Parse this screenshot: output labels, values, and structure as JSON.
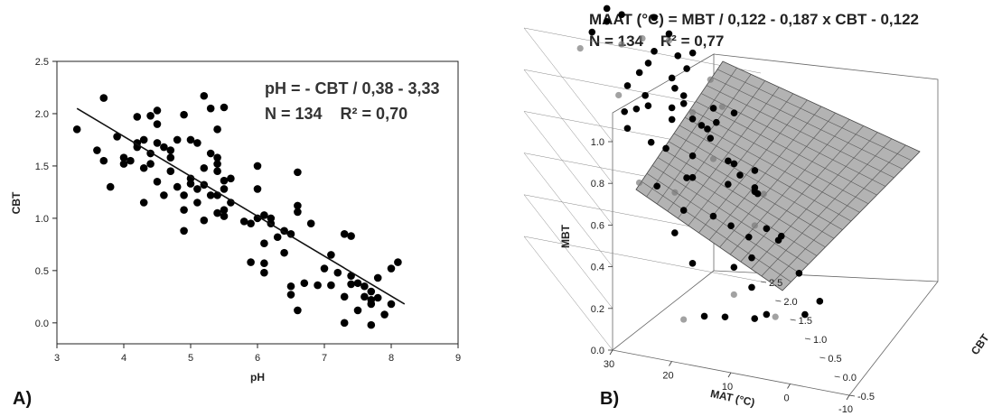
{
  "chart_data": [
    {
      "panel_label": "A)",
      "type": "scatter",
      "xlabel": "pH",
      "ylabel": "CBT",
      "xlim": [
        3,
        9
      ],
      "ylim": [
        -0.2,
        2.5
      ],
      "x_ticks": [
        "3",
        "4",
        "5",
        "6",
        "7",
        "8",
        "9"
      ],
      "y_ticks": [
        "0.0",
        "0.5",
        "1.0",
        "1.5",
        "2.0",
        "2.5"
      ],
      "annotation_line1": "pH = - CBT / 0,38 - 3,33",
      "annotation_line2": "N = 134    R² = 0,70",
      "fit_line": {
        "x": [
          3.3,
          8.2
        ],
        "y": [
          2.05,
          0.18
        ]
      },
      "points": [
        [
          3.3,
          1.85
        ],
        [
          3.6,
          1.65
        ],
        [
          3.7,
          2.15
        ],
        [
          3.7,
          1.55
        ],
        [
          3.8,
          1.3
        ],
        [
          3.9,
          1.78
        ],
        [
          4.0,
          1.58
        ],
        [
          4.0,
          1.52
        ],
        [
          4.1,
          1.55
        ],
        [
          4.2,
          1.97
        ],
        [
          4.2,
          1.72
        ],
        [
          4.2,
          1.68
        ],
        [
          4.3,
          1.48
        ],
        [
          4.3,
          1.15
        ],
        [
          4.3,
          1.75
        ],
        [
          4.4,
          1.98
        ],
        [
          4.4,
          1.62
        ],
        [
          4.4,
          1.52
        ],
        [
          4.5,
          1.35
        ],
        [
          4.5,
          1.9
        ],
        [
          4.5,
          2.03
        ],
        [
          4.5,
          1.72
        ],
        [
          4.6,
          1.68
        ],
        [
          4.6,
          1.22
        ],
        [
          4.7,
          1.58
        ],
        [
          4.7,
          1.45
        ],
        [
          4.7,
          1.65
        ],
        [
          4.8,
          1.75
        ],
        [
          4.8,
          1.3
        ],
        [
          4.9,
          1.99
        ],
        [
          4.9,
          1.22
        ],
        [
          4.9,
          1.08
        ],
        [
          4.9,
          0.88
        ],
        [
          5.0,
          1.75
        ],
        [
          5.0,
          1.38
        ],
        [
          5.0,
          1.33
        ],
        [
          5.1,
          1.28
        ],
        [
          5.1,
          1.15
        ],
        [
          5.1,
          1.72
        ],
        [
          5.2,
          1.48
        ],
        [
          5.2,
          1.32
        ],
        [
          5.2,
          0.98
        ],
        [
          5.2,
          2.17
        ],
        [
          5.3,
          2.05
        ],
        [
          5.3,
          1.62
        ],
        [
          5.3,
          1.22
        ],
        [
          5.4,
          1.85
        ],
        [
          5.4,
          1.52
        ],
        [
          5.4,
          1.45
        ],
        [
          5.4,
          1.22
        ],
        [
          5.4,
          1.58
        ],
        [
          5.5,
          1.36
        ],
        [
          5.5,
          1.28
        ],
        [
          5.5,
          1.08
        ],
        [
          5.5,
          1.02
        ],
        [
          5.6,
          1.15
        ],
        [
          5.6,
          1.38
        ],
        [
          5.4,
          1.05
        ],
        [
          5.5,
          2.06
        ],
        [
          5.8,
          0.97
        ],
        [
          5.9,
          0.58
        ],
        [
          5.9,
          0.95
        ],
        [
          6.0,
          1.5
        ],
        [
          6.0,
          1.28
        ],
        [
          6.0,
          1.0
        ],
        [
          6.1,
          1.03
        ],
        [
          6.1,
          0.76
        ],
        [
          6.1,
          0.57
        ],
        [
          6.1,
          0.48
        ],
        [
          6.2,
          1.0
        ],
        [
          6.2,
          0.95
        ],
        [
          6.3,
          0.82
        ],
        [
          6.4,
          0.88
        ],
        [
          6.4,
          0.67
        ],
        [
          6.5,
          0.85
        ],
        [
          6.5,
          0.35
        ],
        [
          6.5,
          0.27
        ],
        [
          6.6,
          1.44
        ],
        [
          6.6,
          1.12
        ],
        [
          6.6,
          1.06
        ],
        [
          6.6,
          0.12
        ],
        [
          6.7,
          0.38
        ],
        [
          6.8,
          0.95
        ],
        [
          6.9,
          0.36
        ],
        [
          7.0,
          0.52
        ],
        [
          7.1,
          0.65
        ],
        [
          7.1,
          0.36
        ],
        [
          7.2,
          0.48
        ],
        [
          7.3,
          0.85
        ],
        [
          7.3,
          0.25
        ],
        [
          7.3,
          0.0
        ],
        [
          7.4,
          0.83
        ],
        [
          7.4,
          0.45
        ],
        [
          7.4,
          0.37
        ],
        [
          7.5,
          0.38
        ],
        [
          7.5,
          0.12
        ],
        [
          7.6,
          0.35
        ],
        [
          7.6,
          0.25
        ],
        [
          7.7,
          0.3
        ],
        [
          7.7,
          0.22
        ],
        [
          7.7,
          0.18
        ],
        [
          7.7,
          -0.02
        ],
        [
          7.8,
          0.43
        ],
        [
          7.8,
          0.24
        ],
        [
          7.9,
          0.08
        ],
        [
          8.0,
          0.52
        ],
        [
          8.0,
          0.18
        ],
        [
          8.1,
          0.58
        ]
      ]
    },
    {
      "panel_label": "B)",
      "type": "scatter",
      "title_line1": "MAAT (°C) = MBT / 0,122 - 0,187 x CBT - 0,122",
      "title_line2": "N = 134    R² = 0,77",
      "xlabel": "MAT (°C)",
      "ylabel": "MBT",
      "zlabel": "CBT",
      "xlim": [
        -10,
        30
      ],
      "ylim": [
        -0.5,
        2.5
      ],
      "zlim": [
        0.0,
        1.0
      ],
      "x_ticks": [
        "30",
        "20",
        "10",
        "0",
        "-10"
      ],
      "y_ticks": [
        "-0.5",
        "0.0",
        "0.5",
        "1.0",
        "1.5",
        "2.0",
        "2.5"
      ],
      "z_ticks": [
        "0.0",
        "0.2",
        "0.4",
        "0.6",
        "0.8",
        "1.0"
      ],
      "plane_color": "#b3b3b3",
      "points": [
        [
          23,
          0.5,
          1.0
        ],
        [
          25,
          0.0,
          1.0
        ],
        [
          23,
          0.0,
          0.75
        ],
        [
          20,
          0.0,
          0.75
        ],
        [
          19,
          0.5,
          1.05
        ],
        [
          20,
          1.0,
          1.05
        ],
        [
          18,
          0.8,
          1.05
        ],
        [
          20,
          1.3,
          0.95
        ],
        [
          16,
          1.0,
          0.8
        ],
        [
          17,
          1.3,
          0.9
        ],
        [
          12,
          0.7,
          1.1
        ],
        [
          14,
          1.5,
          1.1
        ],
        [
          18,
          1.6,
          1.15
        ],
        [
          13,
          0.9,
          1.0
        ],
        [
          10,
          1.1,
          1.0
        ],
        [
          9,
          1.0,
          0.95
        ],
        [
          11,
          1.2,
          1.05
        ],
        [
          8,
          1.2,
          0.95
        ],
        [
          10,
          1.5,
          1.05
        ],
        [
          6,
          1.1,
          0.9
        ],
        [
          4,
          0.8,
          0.7
        ],
        [
          7,
          1.9,
          1.1
        ],
        [
          8,
          2.0,
          1.15
        ],
        [
          5,
          1.5,
          0.85
        ],
        [
          2,
          1.8,
          0.75
        ],
        [
          0,
          2.0,
          0.8
        ],
        [
          0,
          2.1,
          0.85
        ],
        [
          -2,
          2.2,
          0.85
        ],
        [
          -5,
          2.4,
          0.8
        ],
        [
          -3,
          1.8,
          0.6
        ],
        [
          -4,
          1.5,
          0.6
        ],
        [
          -5,
          1.7,
          0.55
        ],
        [
          -8,
          2.0,
          0.5
        ],
        [
          -5,
          0.8,
          0.5
        ],
        [
          -6,
          0.4,
          0.4
        ],
        [
          -9,
          0.3,
          0.3
        ],
        [
          -7,
          1.3,
          0.4
        ],
        [
          -2,
          1.1,
          0.48
        ],
        [
          0,
          0.9,
          0.45
        ],
        [
          1,
          0.6,
          0.4
        ],
        [
          3,
          0.2,
          0.32
        ],
        [
          2,
          -0.1,
          0.25
        ],
        [
          -1,
          0.2,
          0.2
        ],
        [
          -4,
          -0.2,
          0.3
        ],
        [
          0,
          0.3,
          0.6
        ],
        [
          5,
          0.5,
          0.55
        ],
        [
          6,
          0.2,
          0.4
        ],
        [
          7,
          0.0,
          0.3
        ],
        [
          5,
          -0.3,
          0.25
        ],
        [
          9,
          -0.1,
          0.2
        ],
        [
          12,
          0.4,
          0.35
        ],
        [
          13,
          -0.2,
          0.2
        ],
        [
          16,
          -0.1,
          0.15
        ],
        [
          15,
          0.4,
          0.48
        ],
        [
          12,
          0.7,
          0.55
        ],
        [
          8,
          0.5,
          0.58
        ],
        [
          10,
          0.8,
          0.7
        ],
        [
          11,
          1.2,
          0.55
        ],
        [
          14,
          0.9,
          0.8
        ],
        [
          6,
          1.6,
          0.68
        ],
        [
          8,
          1.4,
          0.6
        ],
        [
          9,
          1.7,
          0.82
        ],
        [
          3,
          1.5,
          0.7
        ],
        [
          2,
          1.2,
          0.75
        ],
        [
          -1,
          1.6,
          0.68
        ],
        [
          -3,
          1.2,
          0.62
        ],
        [
          -6,
          1.9,
          0.62
        ],
        [
          1,
          2.0,
          1.0
        ],
        [
          2,
          2.4,
          1.05
        ],
        [
          4,
          2.2,
          1.0
        ],
        [
          6,
          2.4,
          1.12
        ],
        [
          9,
          2.3,
          1.2
        ],
        [
          12,
          2.1,
          1.12
        ],
        [
          15,
          2.2,
          1.2
        ],
        [
          17,
          2.3,
          1.2
        ],
        [
          19,
          1.9,
          1.2
        ],
        [
          21,
          2.0,
          1.12
        ],
        [
          22,
          2.2,
          1.0
        ],
        [
          14,
          1.8,
          1.0
        ],
        [
          11,
          1.9,
          1.1
        ]
      ]
    }
  ]
}
